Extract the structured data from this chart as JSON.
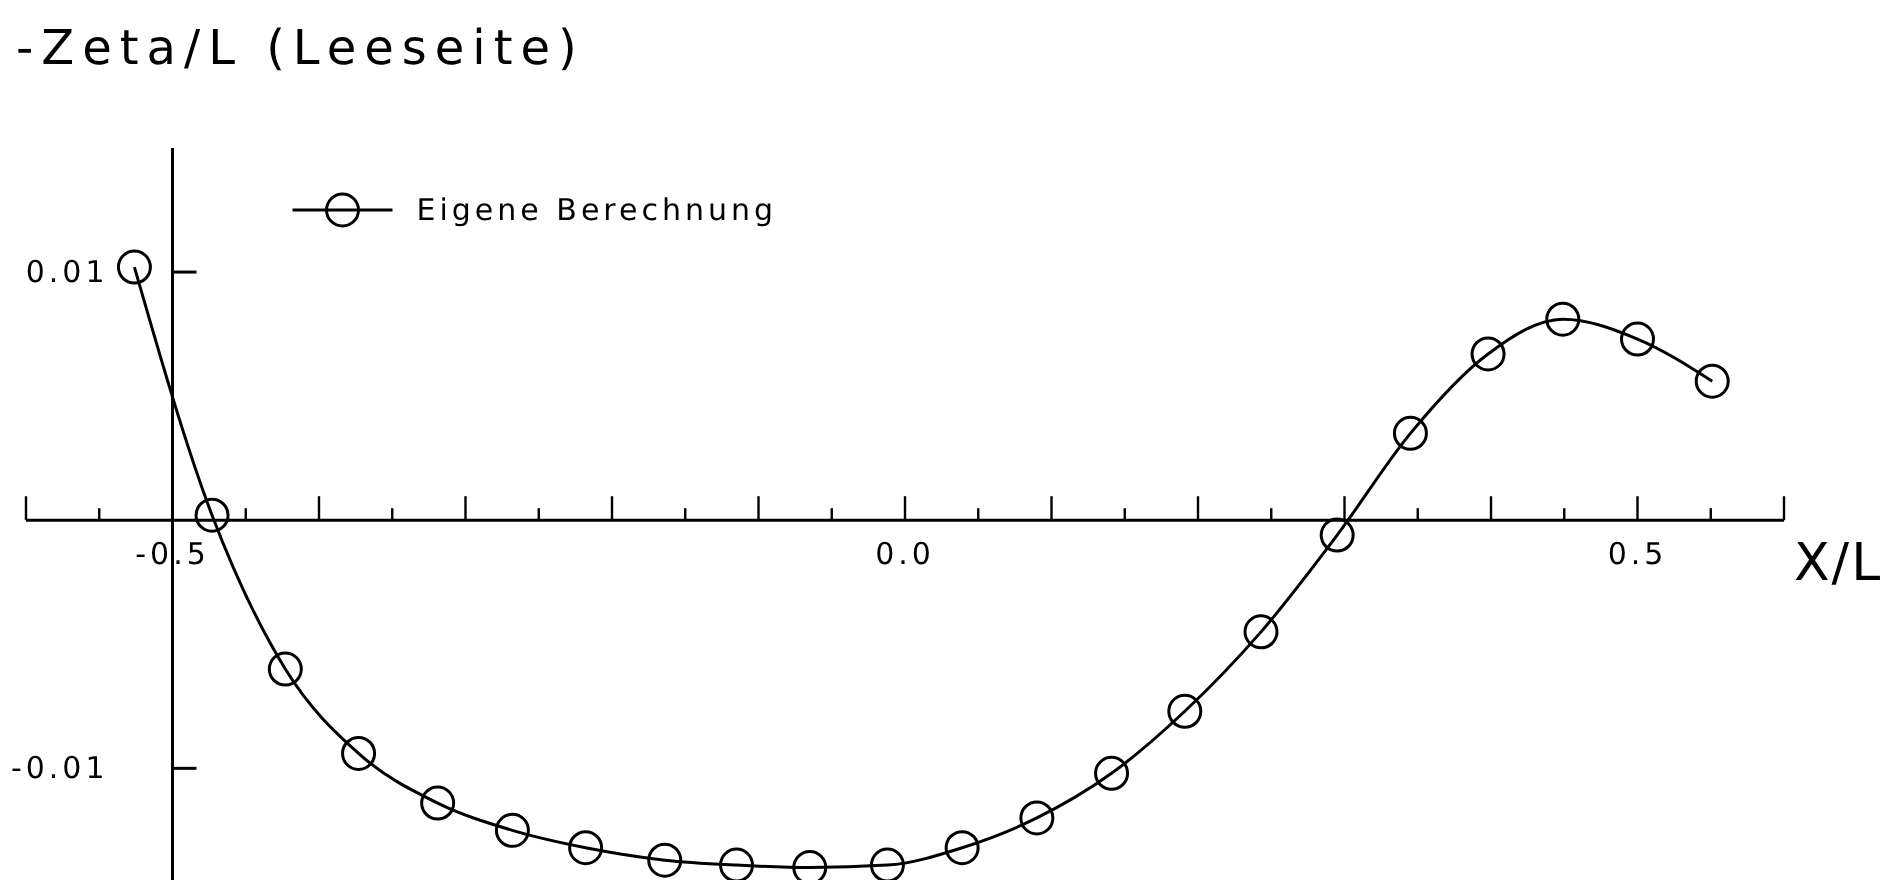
{
  "chart_data": {
    "type": "line",
    "title": "-Zeta/L  (Leeseite)",
    "xlabel": "X/L",
    "x": [
      -0.526,
      -0.473,
      -0.423,
      -0.373,
      -0.319,
      -0.268,
      -0.218,
      -0.164,
      -0.115,
      -0.065,
      -0.012,
      0.039,
      0.09,
      0.141,
      0.191,
      0.243,
      0.295,
      0.345,
      0.398,
      0.449,
      0.5,
      0.551
    ],
    "series": [
      {
        "name": "Eigene Berechnung",
        "color": "#000000",
        "values": [
          0.0102,
          0.0002,
          -0.006,
          -0.0094,
          -0.0114,
          -0.0125,
          -0.0132,
          -0.0137,
          -0.0139,
          -0.014,
          -0.0139,
          -0.0132,
          -0.012,
          -0.0102,
          -0.0077,
          -0.0045,
          -0.0006,
          0.0035,
          0.0067,
          0.0081,
          0.0073,
          0.0056
        ]
      }
    ],
    "xlim": [
      -0.6,
      0.6
    ],
    "ylim": [
      -0.0145,
      0.015
    ],
    "xticks": [
      {
        "value": -0.6,
        "label": null
      },
      {
        "value": -0.55,
        "label": null
      },
      {
        "value": -0.5,
        "label": "-0.5"
      },
      {
        "value": -0.45,
        "label": null
      },
      {
        "value": -0.4,
        "label": null
      },
      {
        "value": -0.35,
        "label": null
      },
      {
        "value": -0.3,
        "label": null
      },
      {
        "value": -0.25,
        "label": null
      },
      {
        "value": -0.2,
        "label": null
      },
      {
        "value": -0.15,
        "label": null
      },
      {
        "value": -0.1,
        "label": null
      },
      {
        "value": -0.05,
        "label": null
      },
      {
        "value": 0,
        "label": "0.0"
      },
      {
        "value": 0.05,
        "label": null
      },
      {
        "value": 0.1,
        "label": null
      },
      {
        "value": 0.15,
        "label": null
      },
      {
        "value": 0.2,
        "label": null
      },
      {
        "value": 0.25,
        "label": null
      },
      {
        "value": 0.3,
        "label": null
      },
      {
        "value": 0.35,
        "label": null
      },
      {
        "value": 0.4,
        "label": null
      },
      {
        "value": 0.45,
        "label": null
      },
      {
        "value": 0.5,
        "label": "0.5"
      },
      {
        "value": 0.55,
        "label": null
      },
      {
        "value": 0.6,
        "label": null
      }
    ],
    "yticks": [
      {
        "value": 0.01,
        "label": "0.01"
      },
      {
        "value": -0.01,
        "label": "-0.01"
      }
    ],
    "grid": false,
    "legend": "top left",
    "marker": "circle",
    "line_style": "solid"
  }
}
